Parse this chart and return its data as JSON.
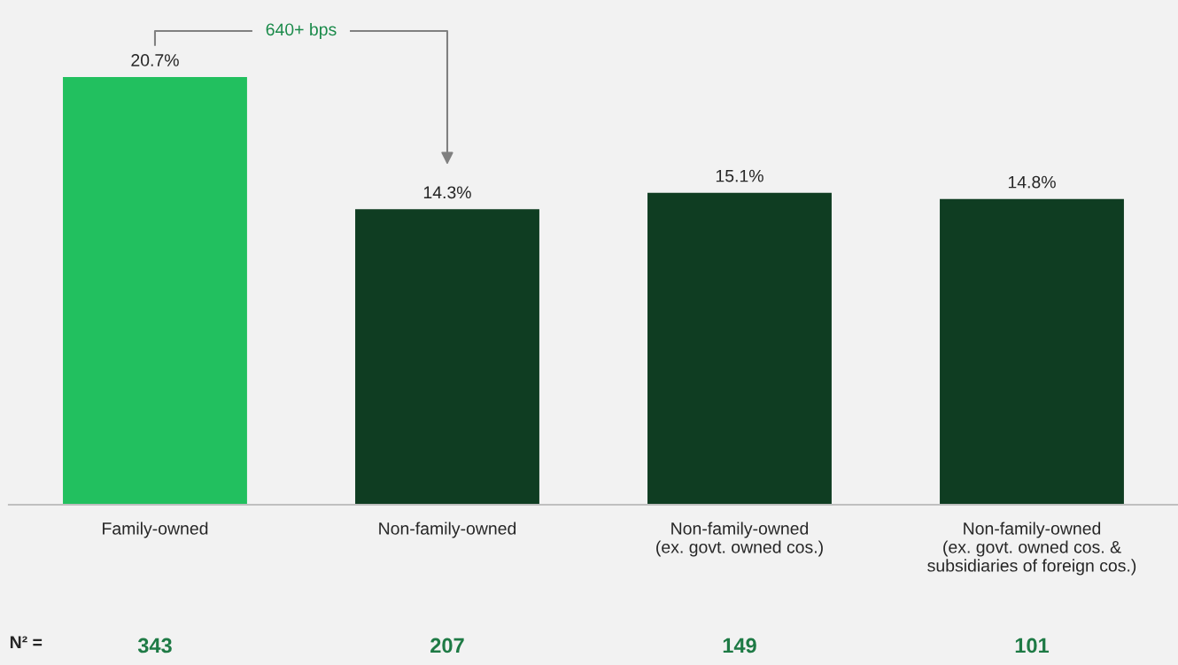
{
  "chart_data": {
    "type": "bar",
    "categories": [
      "Family-owned",
      "Non-family-owned",
      "Non-family-owned\n(ex. govt. owned cos.)",
      "Non-family-owned\n(ex. govt. owned cos. &\nsubsidiaries of foreign cos.)"
    ],
    "values": [
      20.7,
      14.3,
      15.1,
      14.8
    ],
    "colors": [
      "#22c05f",
      "#0f3d22",
      "#0f3d22",
      "#0f3d22"
    ],
    "value_labels": [
      "20.7%",
      "14.3%",
      "15.1%",
      "14.8%"
    ],
    "annotations": [
      "640+ bps",
      "N² =",
      "343",
      "207",
      "149",
      "101"
    ]
  }
}
